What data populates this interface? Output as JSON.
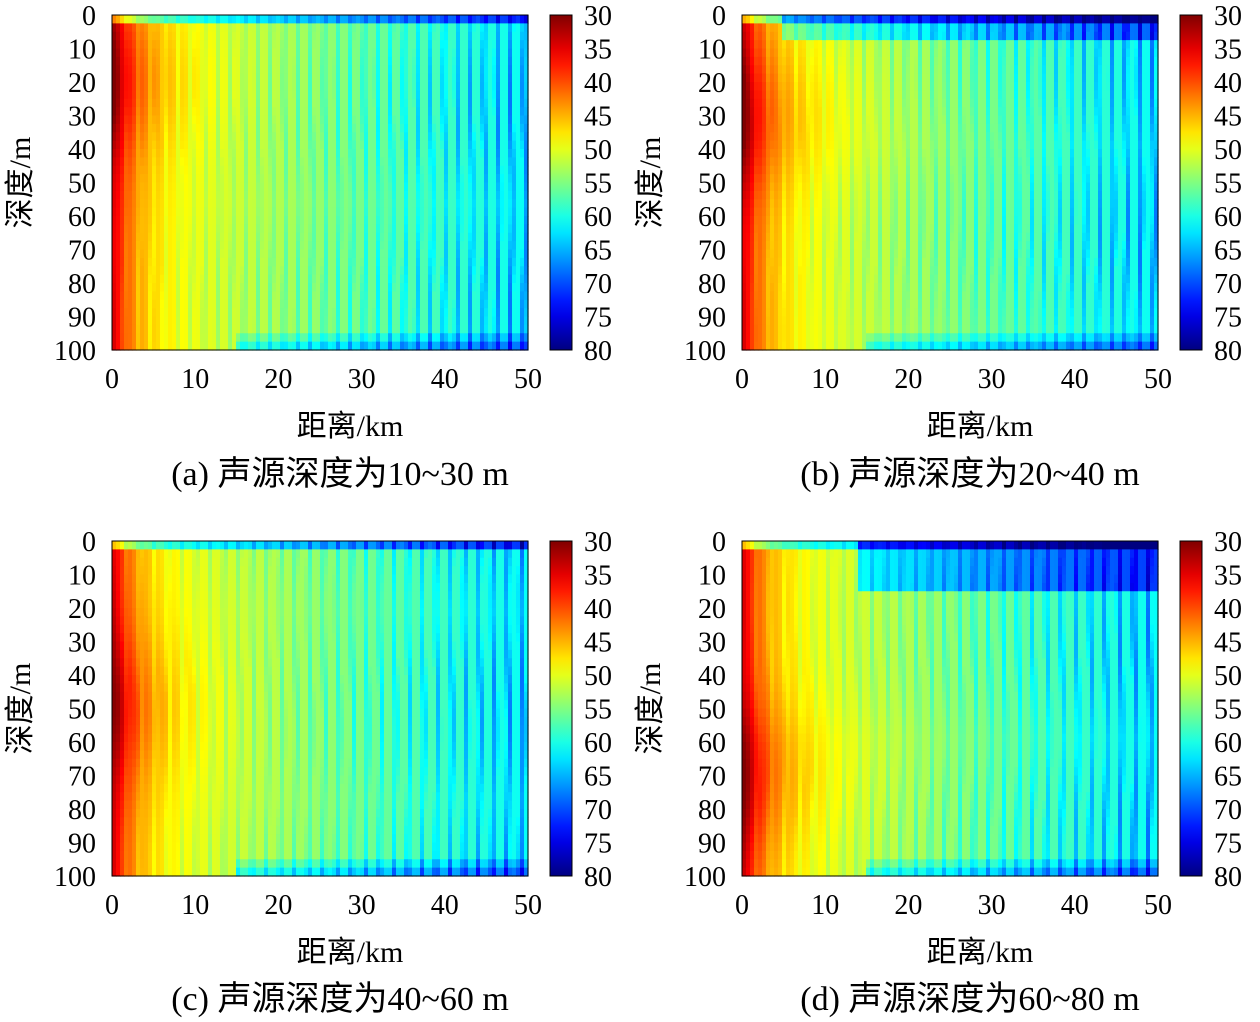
{
  "chart_data": [
    {
      "type": "heatmap",
      "caption": "(a) 声源深度为10~30 m",
      "xlabel": "距离/km",
      "ylabel": "深度/m",
      "xlim": [
        0,
        50
      ],
      "ylim": [
        100,
        0
      ],
      "x_ticks": [
        "0",
        "10",
        "20",
        "30",
        "40",
        "50"
      ],
      "y_ticks": [
        "0",
        "10",
        "20",
        "30",
        "40",
        "50",
        "60",
        "70",
        "80",
        "90",
        "100"
      ],
      "colorbar": {
        "range": [
          30,
          80
        ],
        "ticks": [
          "30",
          "35",
          "40",
          "45",
          "50",
          "55",
          "60",
          "65",
          "70",
          "75",
          "80"
        ]
      },
      "colormap": "jet",
      "source_depth_range_m": [
        10,
        30
      ]
    },
    {
      "type": "heatmap",
      "caption": "(b) 声源深度为20~40 m",
      "xlabel": "距离/km",
      "ylabel": "深度/m",
      "xlim": [
        0,
        50
      ],
      "ylim": [
        100,
        0
      ],
      "x_ticks": [
        "0",
        "10",
        "20",
        "30",
        "40",
        "50"
      ],
      "y_ticks": [
        "0",
        "10",
        "20",
        "30",
        "40",
        "50",
        "60",
        "70",
        "80",
        "90",
        "100"
      ],
      "colorbar": {
        "range": [
          30,
          80
        ],
        "ticks": [
          "30",
          "35",
          "40",
          "45",
          "50",
          "55",
          "60",
          "65",
          "70",
          "75",
          "80"
        ]
      },
      "colormap": "jet",
      "source_depth_range_m": [
        20,
        40
      ]
    },
    {
      "type": "heatmap",
      "caption": "(c) 声源深度为40~60 m",
      "xlabel": "距离/km",
      "ylabel": "深度/m",
      "xlim": [
        0,
        50
      ],
      "ylim": [
        100,
        0
      ],
      "x_ticks": [
        "0",
        "10",
        "20",
        "30",
        "40",
        "50"
      ],
      "y_ticks": [
        "0",
        "10",
        "20",
        "30",
        "40",
        "50",
        "60",
        "70",
        "80",
        "90",
        "100"
      ],
      "colorbar": {
        "range": [
          30,
          80
        ],
        "ticks": [
          "30",
          "35",
          "40",
          "45",
          "50",
          "55",
          "60",
          "65",
          "70",
          "75",
          "80"
        ]
      },
      "colormap": "jet",
      "source_depth_range_m": [
        40,
        60
      ]
    },
    {
      "type": "heatmap",
      "caption": "(d) 声源深度为60~80 m",
      "xlabel": "距离/km",
      "ylabel": "深度/m",
      "xlim": [
        0,
        50
      ],
      "ylim": [
        100,
        0
      ],
      "x_ticks": [
        "0",
        "10",
        "20",
        "30",
        "40",
        "50"
      ],
      "y_ticks": [
        "0",
        "10",
        "20",
        "30",
        "40",
        "50",
        "60",
        "70",
        "80",
        "90",
        "100"
      ],
      "colorbar": {
        "range": [
          30,
          80
        ],
        "ticks": [
          "30",
          "35",
          "40",
          "45",
          "50",
          "55",
          "60",
          "65",
          "70",
          "75",
          "80"
        ]
      },
      "colormap": "jet",
      "source_depth_range_m": [
        60,
        80
      ]
    }
  ]
}
